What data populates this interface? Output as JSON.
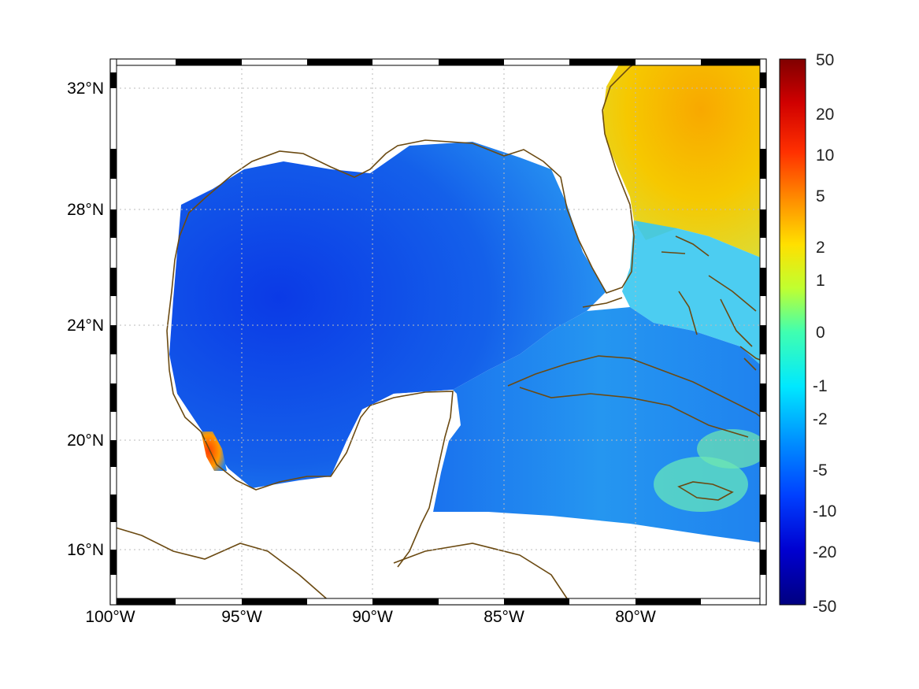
{
  "map": {
    "region": "Gulf of Mexico and western Caribbean",
    "lon_range": [
      -100,
      -75
    ],
    "lat_range": [
      15,
      33
    ],
    "lon_ticks": [
      {
        "value": -100,
        "label": "100°W"
      },
      {
        "value": -95,
        "label": "95°W"
      },
      {
        "value": -90,
        "label": "90°W"
      },
      {
        "value": -85,
        "label": "85°W"
      },
      {
        "value": -80,
        "label": "80°W"
      }
    ],
    "lat_ticks": [
      {
        "value": 32,
        "label": "32°N"
      },
      {
        "value": 28,
        "label": "28°N"
      },
      {
        "value": 24,
        "label": "24°N"
      },
      {
        "value": 20,
        "label": "20°N"
      },
      {
        "value": 16,
        "label": "16°N"
      }
    ],
    "grid": "dotted",
    "colormap": "jet",
    "colors": {
      "coastline": "#6b4a12",
      "water_min": "#0a2ce0",
      "water_mid": "#1e8ef0",
      "atlantic": "#f5c400",
      "hotspot": "#e63a10",
      "land": "#ffffff"
    }
  },
  "colorbar": {
    "labels": [
      "50",
      "20",
      "10",
      "5",
      "2",
      "1",
      "0",
      "-1",
      "-2",
      "-5",
      "-10",
      "-20",
      "-50"
    ],
    "colors": [
      "#800000",
      "#c00000",
      "#ff2000",
      "#ff6a00",
      "#ffb300",
      "#f7f000",
      "#8cff70",
      "#18ffe0",
      "#00c8ff",
      "#0070ff",
      "#0030ff",
      "#0000c8",
      "#000080"
    ]
  }
}
